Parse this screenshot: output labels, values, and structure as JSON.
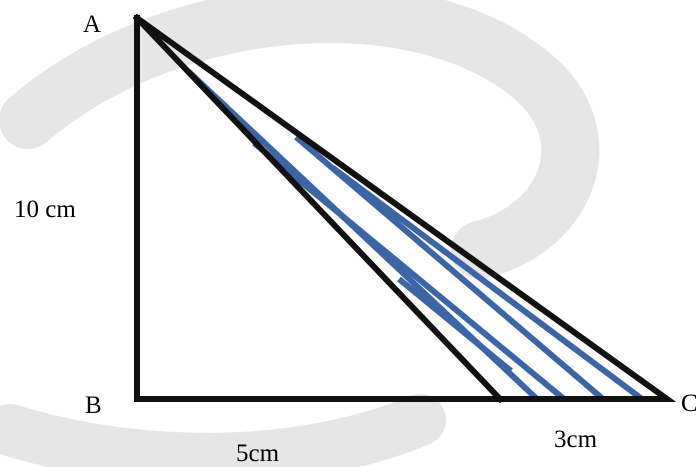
{
  "vertices": {
    "a": "A",
    "b": "B",
    "c": "C"
  },
  "measurements": {
    "ab": "10 cm",
    "bd": "5cm",
    "dc": "3cm"
  },
  "colors": {
    "outline": "#111111",
    "hatch": "#3a66a7",
    "watermark": "#e6e6e6"
  }
}
